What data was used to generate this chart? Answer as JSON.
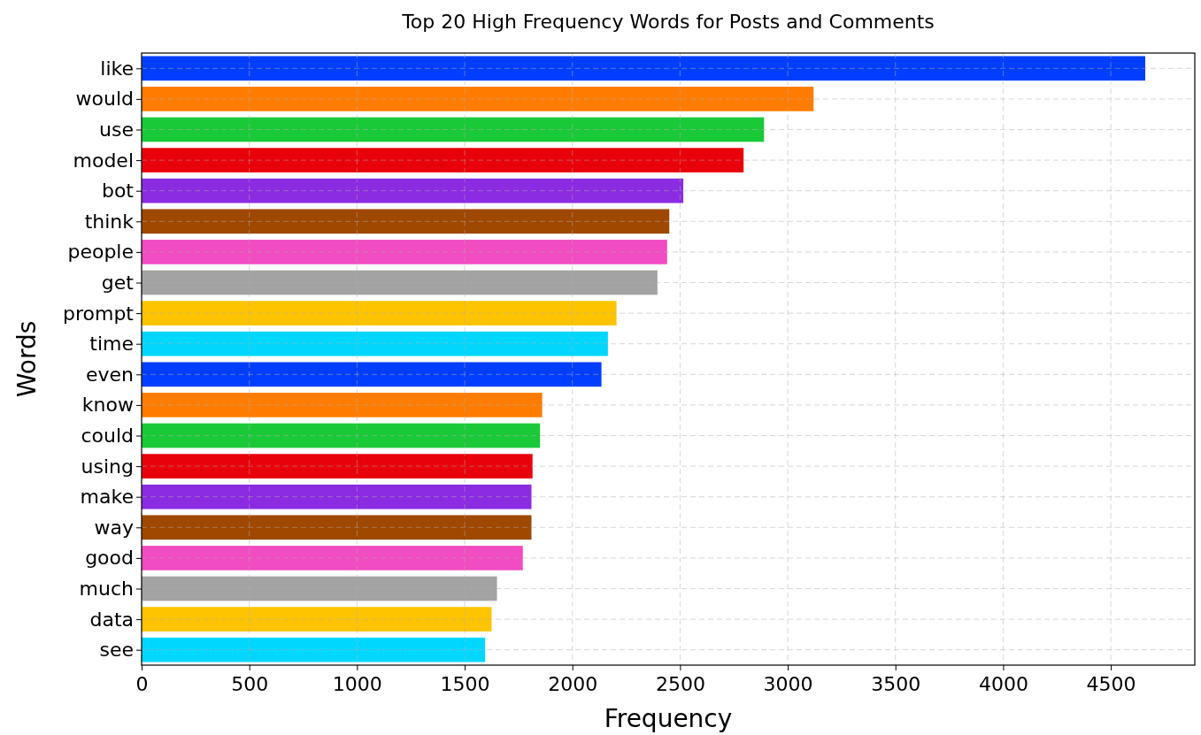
{
  "chart_data": {
    "type": "bar",
    "orientation": "horizontal",
    "title": "Top 20 High Frequency Words for Posts and Comments",
    "xlabel": "Frequency",
    "ylabel": "Words",
    "categories": [
      "like",
      "would",
      "use",
      "model",
      "bot",
      "think",
      "people",
      "get",
      "prompt",
      "time",
      "even",
      "know",
      "could",
      "using",
      "make",
      "way",
      "good",
      "much",
      "data",
      "see"
    ],
    "values": [
      4660,
      3120,
      2890,
      2795,
      2515,
      2450,
      2440,
      2395,
      2205,
      2165,
      2135,
      1860,
      1850,
      1815,
      1810,
      1810,
      1770,
      1650,
      1625,
      1595
    ],
    "colors": [
      "#023eff",
      "#ff7c00",
      "#1ac938",
      "#e8000b",
      "#8b2be2",
      "#9f4800",
      "#f14cc1",
      "#a3a3a3",
      "#ffc400",
      "#00d7ff",
      "#023eff",
      "#ff7c00",
      "#1ac938",
      "#e8000b",
      "#8b2be2",
      "#9f4800",
      "#f14cc1",
      "#a3a3a3",
      "#ffc400",
      "#00d7ff"
    ],
    "xlim": [
      0,
      4890
    ],
    "xticks": [
      0,
      500,
      1000,
      1500,
      2000,
      2500,
      3000,
      3500,
      4000,
      4500
    ],
    "grid": true
  }
}
